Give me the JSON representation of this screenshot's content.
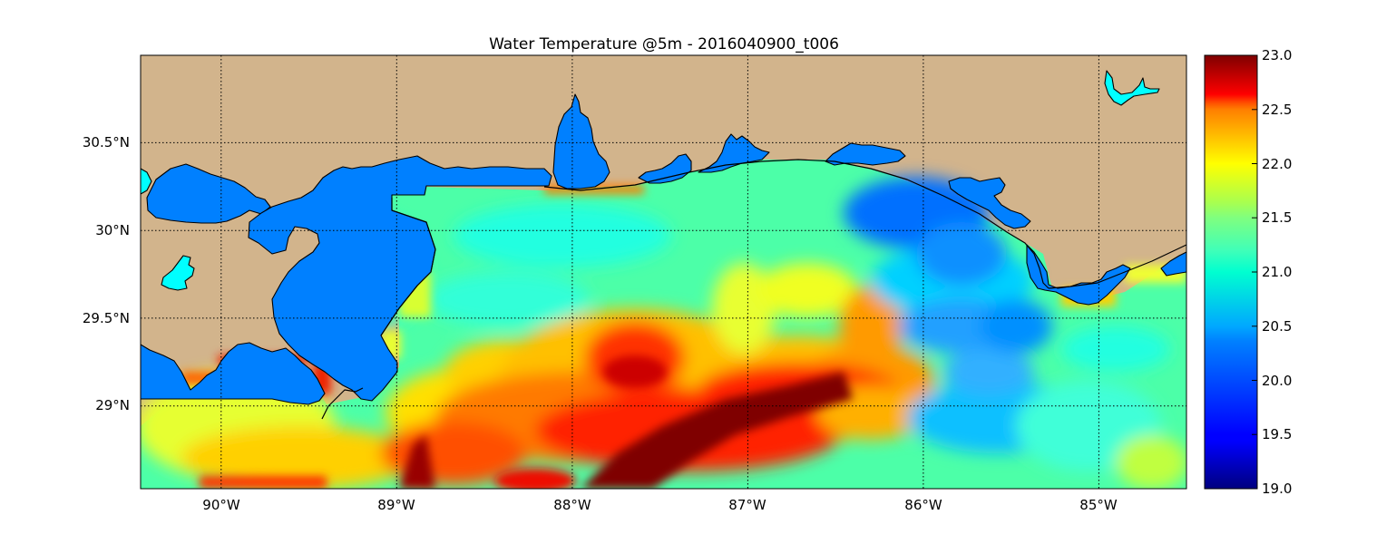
{
  "title": "Water Temperature @5m - 2016040900_t006",
  "colors": {
    "land": "#d2b48c",
    "inland_water": "#0080ff",
    "lake": "#00ffff",
    "coastline": "#000000"
  },
  "map": {
    "projection": "cylindrical",
    "lon_range": [
      -90.5,
      -84.5
    ],
    "lat_range": [
      28.55,
      31.0
    ],
    "grid": true,
    "lon_ticks": [
      {
        "value": -90,
        "label": "90°W"
      },
      {
        "value": -89,
        "label": "89°W"
      },
      {
        "value": -88,
        "label": "88°W"
      },
      {
        "value": -87,
        "label": "87°W"
      },
      {
        "value": -86,
        "label": "86°W"
      },
      {
        "value": -85,
        "label": "85°W"
      }
    ],
    "lat_ticks": [
      {
        "value": 30.5,
        "label": "30.5°N"
      },
      {
        "value": 30.0,
        "label": "30°N"
      },
      {
        "value": 29.5,
        "label": "29.5°N"
      },
      {
        "value": 29.0,
        "label": "29°N"
      }
    ]
  },
  "colorbar": {
    "colormap": "jet",
    "range": [
      19.0,
      23.0
    ],
    "tick_labels": [
      "19.0",
      "19.5",
      "20.0",
      "20.5",
      "21.0",
      "21.5",
      "22.0",
      "22.5",
      "23.0"
    ]
  }
}
